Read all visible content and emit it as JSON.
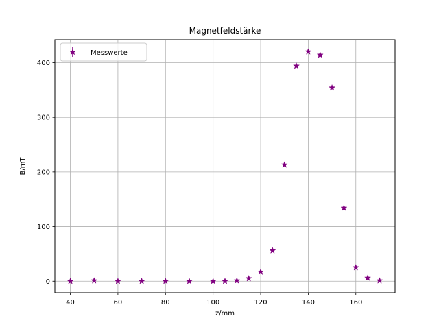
{
  "chart_data": {
    "type": "scatter",
    "title": "Magnetfeldstärke",
    "xlabel": "z/mm",
    "ylabel": "B/mT",
    "xlim": [
      33.5,
      176.5
    ],
    "ylim": [
      -21,
      442
    ],
    "xticks": [
      40,
      60,
      80,
      100,
      120,
      140,
      160
    ],
    "yticks": [
      0,
      100,
      200,
      300,
      400
    ],
    "grid": true,
    "legend_position": "upper-left",
    "series": [
      {
        "name": "Messwerte",
        "color": "#800080",
        "marker": "star",
        "errorbars": true,
        "x": [
          40,
          50,
          60,
          70,
          80,
          90,
          100,
          105,
          110,
          115,
          120,
          125,
          130,
          135,
          140,
          145,
          150,
          155,
          160,
          165,
          170
        ],
        "y": [
          0,
          1,
          0,
          0,
          0,
          0,
          0,
          0,
          1,
          5,
          17,
          56,
          213,
          394,
          420,
          414,
          354,
          134,
          25,
          6,
          1
        ]
      }
    ]
  }
}
